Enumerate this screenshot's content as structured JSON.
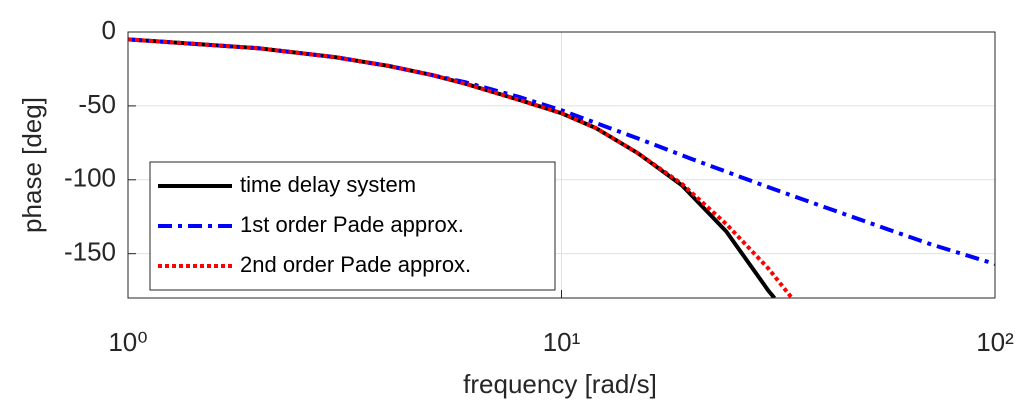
{
  "chart_data": {
    "type": "line",
    "xlabel": "frequency [rad/s]",
    "ylabel": "phase [deg]",
    "xscale": "log",
    "xlim": [
      1,
      100
    ],
    "ylim": [
      -180,
      0
    ],
    "xticks": [
      {
        "value": 1,
        "label": "10⁰"
      },
      {
        "value": 10,
        "label": "10¹"
      },
      {
        "value": 100,
        "label": "10²"
      }
    ],
    "yticks": [
      -150,
      -100,
      -50,
      0
    ],
    "grid": true,
    "legend": "lower left",
    "series": [
      {
        "name": "time delay system",
        "color": "#000000",
        "style": "solid",
        "x": [
          1,
          2,
          3,
          4,
          5,
          6,
          8,
          10,
          12,
          15,
          19,
          24,
          30,
          31
        ],
        "values": [
          -5,
          -11,
          -17,
          -23,
          -29,
          -35,
          -46,
          -55,
          -65,
          -82,
          -104,
          -135,
          -175,
          -180
        ]
      },
      {
        "name": "1st order Pade approx.",
        "color": "#0000ff",
        "style": "dashdot",
        "x": [
          1,
          2,
          3,
          4,
          5,
          6,
          8,
          10,
          15,
          20,
          30,
          40,
          50,
          70,
          100
        ],
        "values": [
          -5,
          -11,
          -17,
          -23,
          -29,
          -34,
          -44,
          -53,
          -72,
          -86,
          -105,
          -118,
          -128,
          -143,
          -157
        ]
      },
      {
        "name": "2nd order Pade approx.",
        "color": "#ff0000",
        "style": "dotted",
        "x": [
          1,
          2,
          3,
          4,
          5,
          6,
          8,
          10,
          12,
          15,
          19,
          24,
          30,
          34
        ],
        "values": [
          -5,
          -11,
          -17,
          -23,
          -29,
          -35,
          -46,
          -55,
          -65,
          -82,
          -103,
          -130,
          -160,
          -180
        ]
      }
    ]
  }
}
